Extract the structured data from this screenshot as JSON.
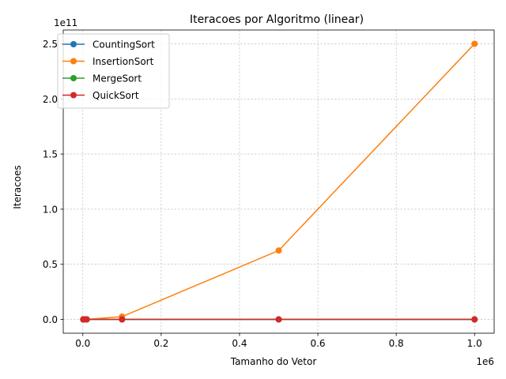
{
  "chart_data": {
    "type": "line",
    "title": "Iteracoes por Algoritmo (linear)",
    "xlabel": "Tamanho do Vetor",
    "ylabel": "Iteracoes",
    "x_offset_label": "1e6",
    "y_offset_label": "1e11",
    "x_multiplier": 1000000,
    "y_multiplier": 100000000000,
    "x_ticks": [
      0.0,
      0.2,
      0.4,
      0.6,
      0.8,
      1.0
    ],
    "x_tick_labels": [
      "0.0",
      "0.2",
      "0.4",
      "0.6",
      "0.8",
      "1.0"
    ],
    "y_ticks": [
      0.0,
      0.5,
      1.0,
      1.5,
      2.0,
      2.5
    ],
    "y_tick_labels": [
      "0.0",
      "0.5",
      "1.0",
      "1.5",
      "2.0",
      "2.5"
    ],
    "xlim": [
      -0.05,
      1.05
    ],
    "ylim": [
      -0.125,
      2.625
    ],
    "grid": true,
    "legend_position": "top-left",
    "x": [
      1000,
      5000,
      10000,
      100000,
      500000,
      1000000
    ],
    "series": [
      {
        "name": "CountingSort",
        "color": "#1f77b4",
        "values": [
          0,
          0,
          0,
          0,
          0,
          0
        ]
      },
      {
        "name": "InsertionSort",
        "color": "#ff7f0e",
        "values": [
          250000,
          6250000,
          25000000,
          2500000000,
          62500000000,
          250000000000
        ]
      },
      {
        "name": "MergeSort",
        "color": "#2ca02c",
        "values": [
          0,
          0,
          0,
          0,
          0,
          0
        ]
      },
      {
        "name": "QuickSort",
        "color": "#d62728",
        "values": [
          0,
          0,
          0,
          0,
          0,
          0
        ]
      }
    ]
  }
}
